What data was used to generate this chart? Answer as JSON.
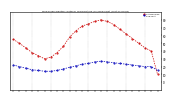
{
  "title": "Milwaukee Weather Outdoor Temperature (vs) Dew Point (Last 24 Hours)",
  "temp": [
    55,
    50,
    44,
    38,
    34,
    30,
    32,
    38,
    46,
    58,
    66,
    72,
    75,
    78,
    80,
    78,
    74,
    68,
    62,
    56,
    50,
    44,
    40,
    10
  ],
  "dew": [
    22,
    20,
    18,
    16,
    15,
    14,
    14,
    15,
    17,
    19,
    21,
    23,
    24,
    26,
    27,
    26,
    25,
    24,
    23,
    22,
    21,
    20,
    20,
    15
  ],
  "temp_color": "#cc0000",
  "dew_color": "#0000bb",
  "bg_color": "#ffffff",
  "grid_color": "#999999",
  "ylim": [
    -10,
    90
  ],
  "ytick_right": [
    80,
    70,
    60,
    50,
    40,
    30,
    20,
    10,
    0
  ],
  "n_points": 24,
  "legend_temp": "Outdoor Temp",
  "legend_dew": "Dew Point"
}
